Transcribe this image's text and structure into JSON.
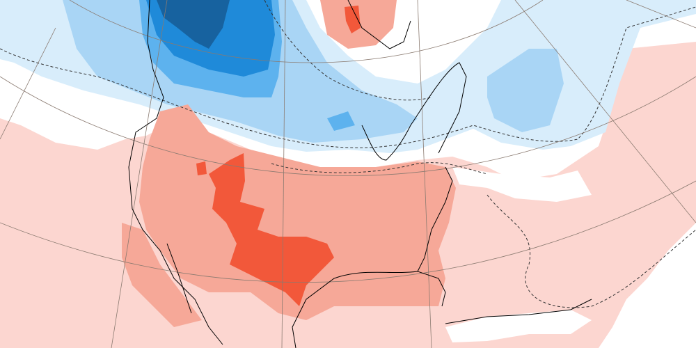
{
  "map": {
    "type": "temperature-anomaly",
    "projection": "polar-stereographic",
    "colors": {
      "background_warm_light": "#fcd6d0",
      "neutral": "#ffffff",
      "warm_medium": "#f6a898",
      "warm_strong": "#f2583a",
      "cold_light": "#d8edfb",
      "cold_medium": "#a9d5f5",
      "cold_strong": "#5db2ee",
      "cold_stronger": "#1f8ad9",
      "cold_strongest": "#17629f",
      "coastline": "#000000",
      "gridline": "#8a7a70"
    }
  }
}
